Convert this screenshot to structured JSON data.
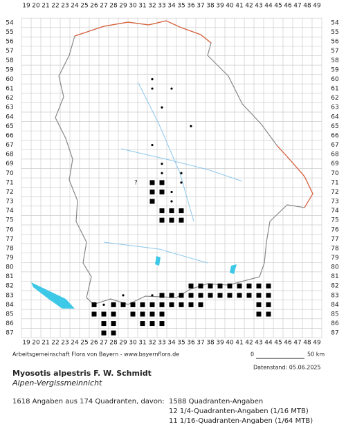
{
  "map": {
    "columns": [
      19,
      20,
      21,
      22,
      23,
      24,
      25,
      26,
      27,
      28,
      29,
      30,
      31,
      32,
      33,
      34,
      35,
      36,
      37,
      38,
      39,
      40,
      41,
      42,
      43,
      44,
      45,
      46,
      47,
      48,
      49
    ],
    "rows": [
      54,
      55,
      56,
      57,
      58,
      59,
      60,
      61,
      62,
      63,
      64,
      65,
      66,
      67,
      68,
      69,
      70,
      71,
      72,
      73,
      74,
      75,
      76,
      77,
      78,
      79,
      80,
      81,
      82,
      83,
      84,
      85,
      86,
      87
    ],
    "question_mark": "?",
    "squares": [
      [
        36,
        82
      ],
      [
        37,
        82
      ],
      [
        38,
        82
      ],
      [
        39,
        82
      ],
      [
        40,
        82
      ],
      [
        41,
        82
      ],
      [
        42,
        82
      ],
      [
        43,
        82
      ],
      [
        44,
        82
      ],
      [
        33,
        83
      ],
      [
        34,
        83
      ],
      [
        35,
        83
      ],
      [
        36,
        83
      ],
      [
        37,
        83
      ],
      [
        38,
        83
      ],
      [
        39,
        83
      ],
      [
        40,
        83
      ],
      [
        41,
        83
      ],
      [
        42,
        83
      ],
      [
        43,
        83
      ],
      [
        44,
        83
      ],
      [
        26,
        84
      ],
      [
        28,
        84
      ],
      [
        29,
        84
      ],
      [
        30,
        84
      ],
      [
        31,
        84
      ],
      [
        32,
        84
      ],
      [
        33,
        84
      ],
      [
        34,
        84
      ],
      [
        35,
        84
      ],
      [
        36,
        84
      ],
      [
        37,
        84
      ],
      [
        43,
        84
      ],
      [
        44,
        84
      ],
      [
        26,
        85
      ],
      [
        27,
        85
      ],
      [
        28,
        85
      ],
      [
        30,
        85
      ],
      [
        31,
        85
      ],
      [
        32,
        85
      ],
      [
        33,
        85
      ],
      [
        43,
        85
      ],
      [
        44,
        85
      ],
      [
        27,
        86
      ],
      [
        28,
        86
      ],
      [
        31,
        86
      ],
      [
        32,
        86
      ],
      [
        33,
        86
      ],
      [
        27,
        87
      ],
      [
        28,
        87
      ],
      [
        32,
        71
      ],
      [
        33,
        71
      ],
      [
        32,
        72
      ],
      [
        33,
        72
      ],
      [
        32,
        73
      ],
      [
        33,
        74
      ],
      [
        34,
        74
      ],
      [
        35,
        74
      ],
      [
        33,
        75
      ],
      [
        34,
        75
      ],
      [
        35,
        75
      ]
    ],
    "dots": [
      [
        32,
        60
      ],
      [
        34,
        61
      ],
      [
        32,
        61
      ],
      [
        33,
        63
      ],
      [
        36,
        65
      ],
      [
        32,
        67
      ],
      [
        33,
        69
      ],
      [
        33,
        70
      ],
      [
        35,
        70
      ],
      [
        35,
        71
      ],
      [
        34,
        72
      ],
      [
        34,
        73
      ],
      [
        29,
        83
      ],
      [
        32,
        83
      ],
      [
        37,
        83
      ],
      [
        27,
        84
      ],
      [
        36,
        82
      ]
    ]
  },
  "footer": {
    "credit": "Arbeitsgemeinschaft Flora von Bayern - www.bayernflora.de",
    "scale_start": "0",
    "scale_end": "50 km",
    "date": "Datenstand: 05.06.2025",
    "species": "Myosotis alpestris F. W. Schmidt",
    "common_name": "Alpen-Vergissmeinnicht",
    "summary": "1618 Angaben aus 174 Quadranten, davon:",
    "counts": [
      "1588 Quadranten-Angaben",
      "12 1/4-Quadranten-Angaben (1/16 MTB)",
      "11 1/16-Quadranten-Angaben (1/64 MTB)"
    ]
  }
}
